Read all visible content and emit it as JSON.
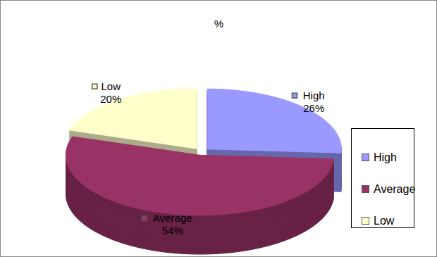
{
  "chart_data": {
    "type": "pie",
    "title": "%",
    "categories": [
      "High",
      "Average",
      "Low"
    ],
    "values": [
      26,
      54,
      20
    ],
    "value_labels": [
      "26%",
      "54%",
      "20%"
    ],
    "colors": [
      "#9999ff",
      "#993366",
      "#ffffcc"
    ],
    "data_labels": true,
    "legend": "right"
  }
}
